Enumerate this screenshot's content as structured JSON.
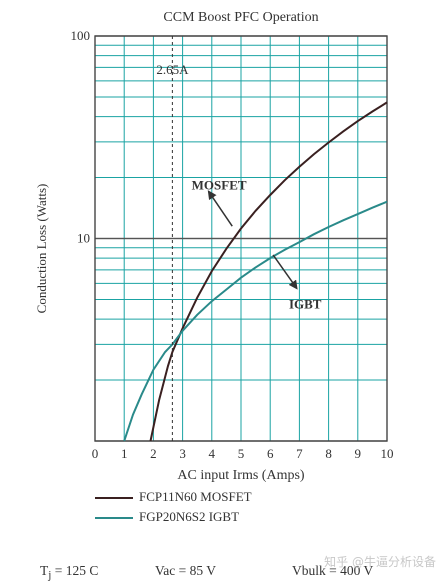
{
  "chart_data": {
    "type": "line",
    "title": "CCM Boost PFC Operation",
    "xlabel": "AC input Irms (Amps)",
    "ylabel": "Conduction Loss (Watts)",
    "xlim": [
      0,
      10
    ],
    "ylim": [
      1,
      100
    ],
    "yscale": "log",
    "xticks": [
      "0",
      "1",
      "2",
      "3",
      "4",
      "5",
      "6",
      "7",
      "8",
      "9",
      "10"
    ],
    "yticks": [
      "100",
      "10"
    ],
    "grid": true,
    "colors": {
      "mosfet": "#3a2020",
      "igbt": "#2a8a8a",
      "grid": "#1aa3a3",
      "axis": "#444444"
    },
    "series": [
      {
        "name": "FCP11N60 MOSFET",
        "label": "MOSFET",
        "x": [
          1.9,
          2.2,
          2.5,
          2.65,
          3,
          3.5,
          4,
          4.5,
          5,
          5.5,
          6,
          6.5,
          7,
          7.5,
          8,
          8.5,
          9,
          9.5,
          10
        ],
        "y": [
          1.0,
          1.6,
          2.35,
          2.75,
          3.6,
          5.1,
          6.9,
          8.9,
          11.2,
          13.7,
          16.4,
          19.4,
          22.6,
          26.1,
          29.8,
          33.8,
          38.0,
          42.4,
          47.0
        ]
      },
      {
        "name": "FGP20N6S2 IGBT",
        "label": "IGBT",
        "x": [
          1.0,
          1.3,
          1.6,
          2.0,
          2.4,
          2.65,
          3,
          3.5,
          4,
          4.5,
          5,
          5.5,
          6,
          6.5,
          7,
          7.5,
          8,
          8.5,
          9,
          9.5,
          10
        ],
        "y": [
          1.0,
          1.35,
          1.7,
          2.25,
          2.75,
          3.0,
          3.5,
          4.2,
          4.9,
          5.6,
          6.4,
          7.2,
          8.0,
          8.8,
          9.6,
          10.5,
          11.4,
          12.3,
          13.2,
          14.2,
          15.2
        ]
      }
    ],
    "vline": {
      "x": 2.65,
      "label": "2.65A"
    },
    "annotations": [
      {
        "text": "MOSFET",
        "series": "MOSFET",
        "text_x": 4.25,
        "text_y": 17.5,
        "arrow_from": [
          4.7,
          11.5
        ],
        "arrow_to": [
          3.9,
          17.0
        ]
      },
      {
        "text": "IGBT",
        "series": "IGBT",
        "text_x": 7.2,
        "text_y": 4.5,
        "arrow_from": [
          6.1,
          8.3
        ],
        "arrow_to": [
          6.9,
          5.7
        ]
      }
    ],
    "footer": {
      "tj": "T",
      "tj_sub": "j",
      "tj_value": " = 125 C",
      "vac": "Vac = 85 V",
      "vbulk": "Vbulk = 400 V"
    }
  },
  "watermark": "知乎 @牛逼分析设备"
}
